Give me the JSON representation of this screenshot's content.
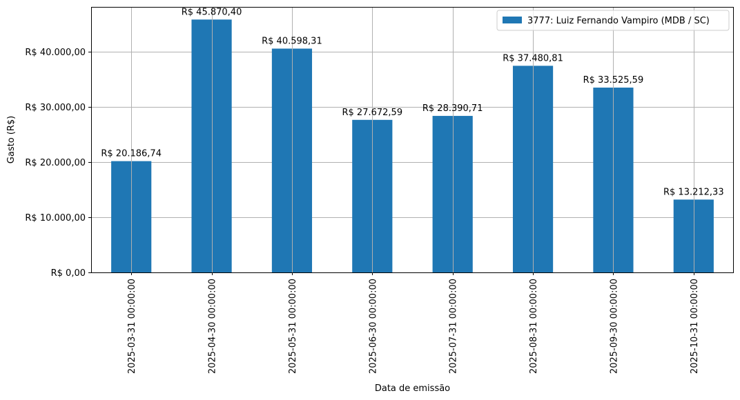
{
  "chart_data": {
    "type": "bar",
    "categories": [
      "2025-03-31 00:00:00",
      "2025-04-30 00:00:00",
      "2025-05-31 00:00:00",
      "2025-06-30 00:00:00",
      "2025-07-31 00:00:00",
      "2025-08-31 00:00:00",
      "2025-09-30 00:00:00",
      "2025-10-31 00:00:00"
    ],
    "series": [
      {
        "name": "3777: Luiz Fernando Vampiro (MDB / SC)",
        "values": [
          20186.74,
          45870.4,
          40598.31,
          27672.59,
          28390.71,
          37480.81,
          33525.59,
          13212.33
        ],
        "color": "#1f77b4"
      }
    ],
    "data_labels": [
      "R$ 20.186,74",
      "R$ 45.870,40",
      "R$ 40.598,31",
      "R$ 27.672,59",
      "R$ 28.390,71",
      "R$ 37.480,81",
      "R$ 33.525,59",
      "R$ 13.212,33"
    ],
    "xlabel": "Data de emissão",
    "ylabel": "Gasto (R$)",
    "ylim": [
      0,
      48165
    ],
    "yticks": [
      0,
      10000,
      20000,
      30000,
      40000
    ],
    "ytick_labels": [
      "R$ 0,00",
      "R$ 10.000,00",
      "R$ 20.000,00",
      "R$ 30.000,00",
      "R$ 40.000,00"
    ],
    "grid": true,
    "legend_position": "top-right"
  }
}
